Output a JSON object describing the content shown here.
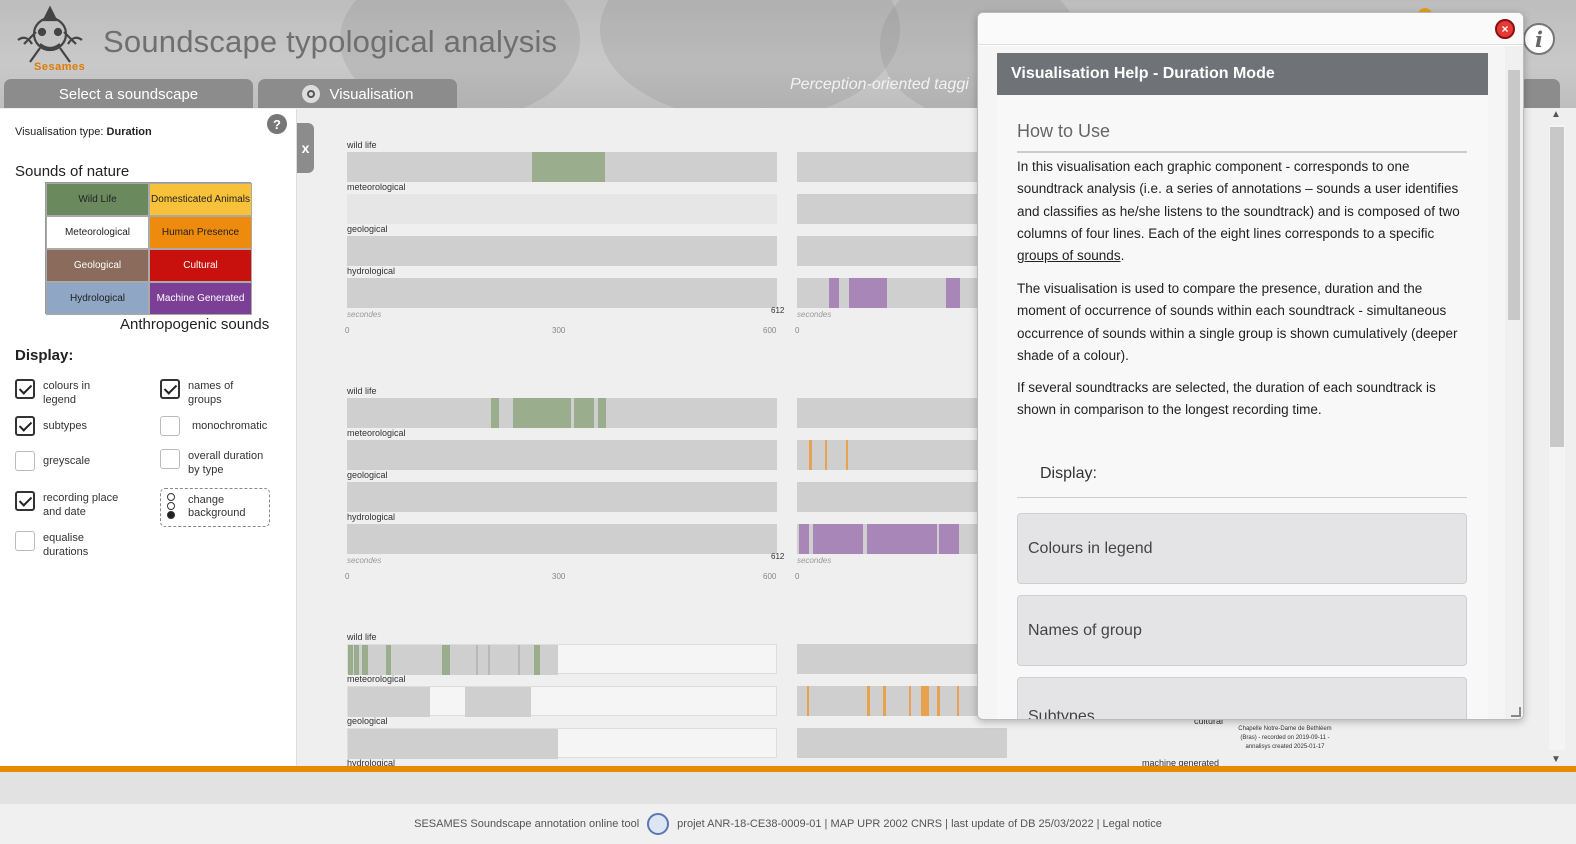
{
  "header": {
    "logo_text": "Sesames",
    "app_title": "Soundscape typological analysis",
    "subtitle": "Perception-oriented taggi",
    "tabs": [
      {
        "label": "Select a soundscape"
      },
      {
        "label": "Visualisation"
      }
    ]
  },
  "left_panel": {
    "vis_type_prefix": "Visualisation type:",
    "vis_type_value": "Duration",
    "help_symbol": "?",
    "nature_label": "Sounds of nature",
    "anthro_label": "Anthropogenic sounds",
    "legend": [
      {
        "label": "Wild Life",
        "color": "#6a8a5e",
        "text_color": "#222"
      },
      {
        "label": "Domesticated Animals",
        "color": "#f7c23a",
        "text_color": "#222"
      },
      {
        "label": "Meteorological",
        "color": "#ffffff",
        "text_color": "#222"
      },
      {
        "label": "Human Presence",
        "color": "#ee8a0c",
        "text_color": "#222"
      },
      {
        "label": "Geological",
        "color": "#8a6b5c",
        "text_color": "#fff"
      },
      {
        "label": "Cultural",
        "color": "#c8100c",
        "text_color": "#fff"
      },
      {
        "label": "Hydrological",
        "color": "#8fa7c4",
        "text_color": "#222"
      },
      {
        "label": "Machine Generated",
        "color": "#7b3f96",
        "text_color": "#fff"
      }
    ],
    "display_label": "Display:",
    "options": {
      "colours_in_legend": {
        "label": "colours in legend",
        "checked": true
      },
      "names_of_groups": {
        "label": "names of groups",
        "checked": true
      },
      "subtypes": {
        "label": "subtypes",
        "checked": true
      },
      "monochromatic": {
        "label": "monochromatic",
        "checked": false
      },
      "greyscale": {
        "label": "greyscale",
        "checked": false
      },
      "overall_duration": {
        "label": "overall duration by type",
        "checked": false
      },
      "recording_place": {
        "label": "recording place and date",
        "checked": true
      },
      "change_background": {
        "label": "change background"
      },
      "equalise_durations": {
        "label": "equalise durations",
        "checked": false
      }
    },
    "collapse_label": "x"
  },
  "charts": {
    "row_labels": [
      "wild life",
      "meteorological",
      "geological",
      "hydrological"
    ],
    "side_labels": [
      "cultural",
      "machine generated"
    ],
    "seconds_label": "secondes",
    "axis_ticks": [
      "0",
      "300",
      "600"
    ],
    "duration_label": "612",
    "caption": "Chapelle Notre-Dame de Bethléem (Bras) - recorded on 2019-09-11 - annalisys created 2025-01-17"
  },
  "help_dialog": {
    "close_symbol": "×",
    "title": "Visualisation Help - Duration Mode",
    "how_title": "How to Use",
    "para1_before": "In this visualisation each graphic component - corresponds to one soundtrack analysis (i.e. a series of annotations – sounds a user identifies and classifies as he/she listens to the soundtrack) and is composed of two columns of four lines. Each of the eight lines corresponds to a specific ",
    "para1_link": "groups of sounds",
    "para1_after": ".",
    "para2": "The visualisation is used to compare the presence, duration and the moment of occurrence of sounds within each soundtrack - simultaneous occurrence of sounds within a single group is shown cumulatively (deeper shade of a colour).",
    "para3": "If several soundtracks are selected, the duration of each soundtrack is shown in comparison to the longest recording time.",
    "display_sub": "Display:",
    "accordion": [
      "Colours in legend",
      "Names of group",
      "Subtypes"
    ]
  },
  "footer": {
    "left_text": "SESAMES Soundscape annotation online tool",
    "right_text": "projet ANR-18-CE38-0009-01 | MAP UPR 2002 CNRS | last update of DB 25/03/2022 | Legal notice"
  }
}
